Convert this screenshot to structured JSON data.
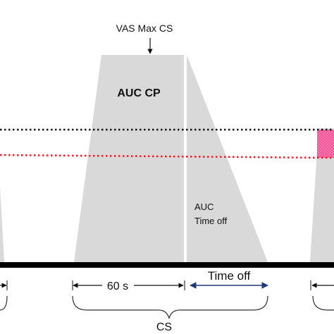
{
  "labels": {
    "vas_max": "VAS Max CS",
    "auc_cp": "AUC CP",
    "auc_line1": "AUC",
    "auc_line2": "Time off",
    "sixty_s": "60 s",
    "time_off": "Time off",
    "cs": "CS"
  },
  "colors": {
    "shape_fill": "#d9d9d9",
    "baseline": "#000000",
    "black_dotted_line": "#111111",
    "red_dotted_line": "#e0202a",
    "pink_region": "#f2579a",
    "time_off_arrow": "#1f3a7a",
    "bracket": "#333333",
    "text": "#111111"
  },
  "icons": {
    "vas_arrow": "down-arrow-icon",
    "sixty_s_arrow": "double-headed-arrow-icon",
    "time_off_arrow": "double-headed-arrow-icon"
  }
}
